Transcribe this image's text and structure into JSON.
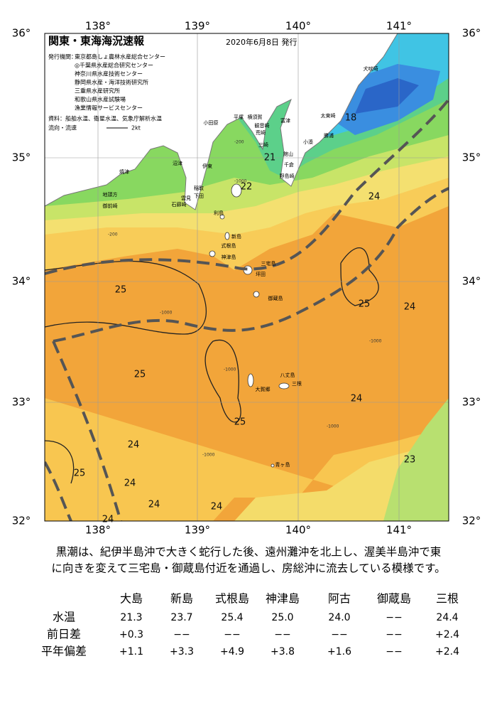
{
  "header": {
    "title": "関東・東海海況速報",
    "date": "2020年6月8日 発行"
  },
  "info": {
    "issuer_label": "発行機関：",
    "issuers": [
      "東京都島しょ農林水産総合センター",
      "◎千葉県水産総合研究センター",
      "神奈川県水産技術センター",
      "静岡県水産・海洋技術研究所",
      "三重県水産研究所",
      "和歌山県水産試験場",
      "漁業情報サービスセンター"
    ],
    "data_label": "資料：",
    "data_text": "船舶水温、衛星水温、気象庁解析水温",
    "flow_label": "流向・流速",
    "flow_unit": "2kt"
  },
  "lon_labels": [
    "138°",
    "139°",
    "140°",
    "141°"
  ],
  "lat_labels": [
    "36°",
    "35°",
    "34°",
    "33°",
    "32°"
  ],
  "places": [
    "犬吠埼",
    "太東崎",
    "勝浦",
    "小湊",
    "館山",
    "千倉",
    "野島崎",
    "富津",
    "観音崎",
    "横須賀",
    "平塚",
    "荒崎",
    "三崎",
    "小田原",
    "伊東",
    "沼津",
    "焼津",
    "稲取",
    "下田",
    "雲見",
    "石廊崎",
    "地頭方",
    "御前崎",
    "利島",
    "新島",
    "式根島",
    "神津島",
    "三宅島",
    "坪田",
    "御蔵島",
    "八丈島",
    "三根",
    "大賀郷",
    "青ヶ島"
  ],
  "isotherm_labels": [
    "18",
    "21",
    "22",
    "24",
    "25",
    "25",
    "24",
    "25",
    "24",
    "25",
    "24",
    "23",
    "25",
    "24",
    "24",
    "24",
    "24"
  ],
  "depth_labels": [
    "-200",
    "-200",
    "-1000",
    "-1000",
    "-1000",
    "-1000",
    "-1000",
    "-1000"
  ],
  "caption": [
    "黒潮は、紀伊半島沖で大きく蛇行した後、遠州灘沖を北上し、渥美半島沖で東",
    "に向きを変えて三宅島・御蔵島付近を通過し、房総沖に流去している模様です。"
  ],
  "table": {
    "columns": [
      "大島",
      "新島",
      "式根島",
      "神津島",
      "阿古",
      "御蔵島",
      "三根"
    ],
    "rows": [
      {
        "label": "水温",
        "values": [
          "21.3",
          "23.7",
          "25.4",
          "25.0",
          "24.0",
          "−−",
          "24.4"
        ]
      },
      {
        "label": "前日差",
        "values": [
          "+0.3",
          "−−",
          "−−",
          "−−",
          "−−",
          "−−",
          "+2.4"
        ]
      },
      {
        "label": "平年偏差",
        "values": [
          "+1.1",
          "+3.3",
          "+4.9",
          "+3.8",
          "+1.6",
          "−−",
          "+2.4"
        ]
      }
    ]
  }
}
